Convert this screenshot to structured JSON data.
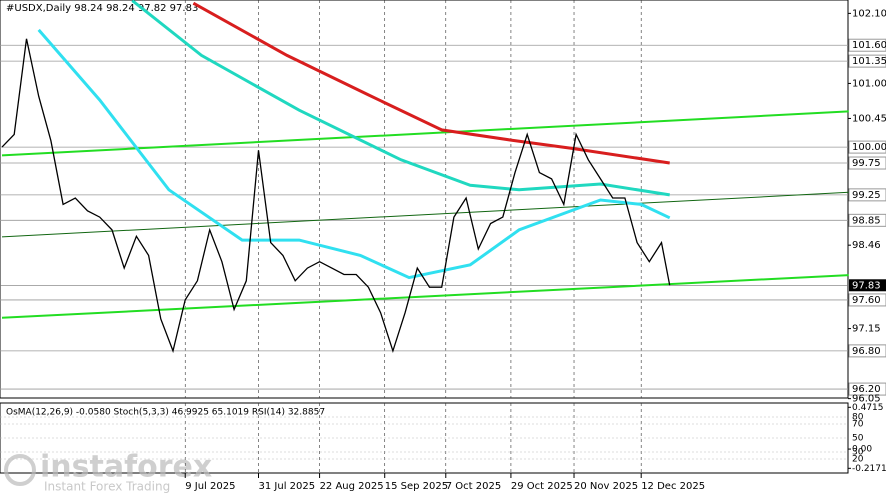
{
  "chart_data": {
    "type": "line",
    "title": "#USDX,Daily  98.24 98.24 97.82 97.83",
    "xlim": [
      -0.5,
      207.8
    ],
    "ylim": [
      96.06,
      102.31
    ],
    "grid": true,
    "x": [
      0,
      3,
      6,
      9,
      12,
      15,
      18,
      21,
      24,
      27,
      30,
      33,
      36,
      39,
      42,
      45,
      48,
      51,
      54,
      57,
      60,
      63,
      66,
      69,
      72,
      75,
      78,
      81,
      84,
      87,
      90,
      93,
      96,
      99,
      102,
      105,
      108,
      111,
      114,
      117,
      120,
      123,
      126,
      129,
      132,
      135,
      138,
      141,
      144,
      147,
      150,
      153,
      156,
      159,
      162,
      164
    ],
    "series": [
      {
        "color": "#000000",
        "values": [
          100.0,
          100.2,
          101.7,
          100.8,
          100.1,
          99.1,
          99.2,
          99.0,
          98.9,
          98.7,
          98.1,
          98.6,
          98.3,
          97.3,
          96.8,
          97.6,
          97.9,
          98.7,
          98.2,
          97.45,
          97.9,
          99.95,
          98.5,
          98.3,
          97.9,
          98.1,
          98.2,
          98.1,
          98.0,
          98.0,
          97.8,
          97.4,
          96.8,
          97.4,
          98.1,
          97.8,
          97.8,
          98.9,
          99.2,
          98.4,
          98.8,
          98.9,
          99.6,
          100.2,
          99.6,
          99.5,
          99.1,
          100.2,
          99.8,
          99.5,
          99.2,
          99.2,
          98.5,
          98.2,
          98.5,
          97.83
        ]
      },
      {
        "color": "#d81e1e",
        "x": [
          47,
          70,
          90,
          108,
          125,
          140,
          164
        ],
        "values": [
          102.26,
          101.44,
          100.82,
          100.27,
          100.11,
          99.98,
          99.75
        ]
      },
      {
        "color": "#20d8c0",
        "x": [
          32,
          49,
          73,
          98,
          115,
          127,
          147,
          164
        ],
        "values": [
          102.3,
          101.44,
          100.58,
          99.8,
          99.4,
          99.33,
          99.42,
          99.25
        ]
      },
      {
        "color": "#30e0f0",
        "x": [
          9,
          24,
          41,
          59,
          73,
          88,
          100,
          115,
          127,
          147,
          157,
          164
        ],
        "values": [
          101.84,
          100.74,
          99.33,
          98.54,
          98.54,
          98.3,
          97.95,
          98.15,
          98.7,
          99.17,
          99.1,
          98.89
        ]
      }
    ],
    "trendlines": [
      {
        "color": "#22dd22",
        "x": [
          0,
          208
        ],
        "values": [
          99.87,
          100.56
        ]
      },
      {
        "color": "#22dd22",
        "x": [
          0,
          208
        ],
        "values": [
          97.32,
          97.99
        ]
      },
      {
        "color": "#116611",
        "x": [
          0,
          208
        ],
        "values": [
          98.59,
          99.29
        ]
      }
    ],
    "levels": [
      101.6,
      101.35,
      100,
      99.75,
      99.25,
      98.85,
      97.6,
      96.8,
      96.2
    ],
    "last_price": 97.83,
    "yticks": [
      {
        "value": 102.1,
        "label": "102.10"
      },
      {
        "value": 101.6,
        "label": "101.60"
      },
      {
        "value": 101.35,
        "label": "101.35"
      },
      {
        "value": 101,
        "label": "101.00"
      },
      100.45,
      {
        "value": 100,
        "label": "100.00"
      },
      99.75,
      99.25,
      98.85,
      98.46,
      {
        "value": 97.6,
        "label": "97.60"
      },
      97.15,
      {
        "value": 96.8,
        "label": "96.80"
      },
      {
        "value": 96.2,
        "label": "96.20"
      },
      96.05
    ],
    "xticks": [
      {
        "value": 45,
        "label": "9 Jul 2025"
      },
      {
        "value": 63,
        "label": "31 Jul 2025"
      },
      {
        "value": 78,
        "label": "22 Aug 2025"
      },
      {
        "value": 94,
        "label": "15 Sep 2025"
      },
      {
        "value": 109,
        "label": "7 Oct 2025"
      },
      {
        "value": 125,
        "label": "29 Oct 2025"
      },
      {
        "value": 140.5,
        "label": "20 Nov 2025"
      },
      {
        "value": 157,
        "label": "12 Dec 2025"
      }
    ]
  },
  "indicator": {
    "title": "OsMA(12,26,9) -0.0580  Stoch(5,3,3) 46.9925 65.1019  RSI(14) 32.8857",
    "stoch_ylim": [
      0,
      100
    ],
    "stoch_ticks": [
      80,
      70,
      50,
      30,
      20
    ],
    "osma_ylim": [
      -0.27,
      0.52
    ],
    "osma_ticks": [
      0.4715,
      {
        "value": 0,
        "label": "0.00"
      },
      -0.2171
    ]
  },
  "watermark": {
    "brand": "instaforex",
    "tagline": "Instant Forex Trading"
  }
}
